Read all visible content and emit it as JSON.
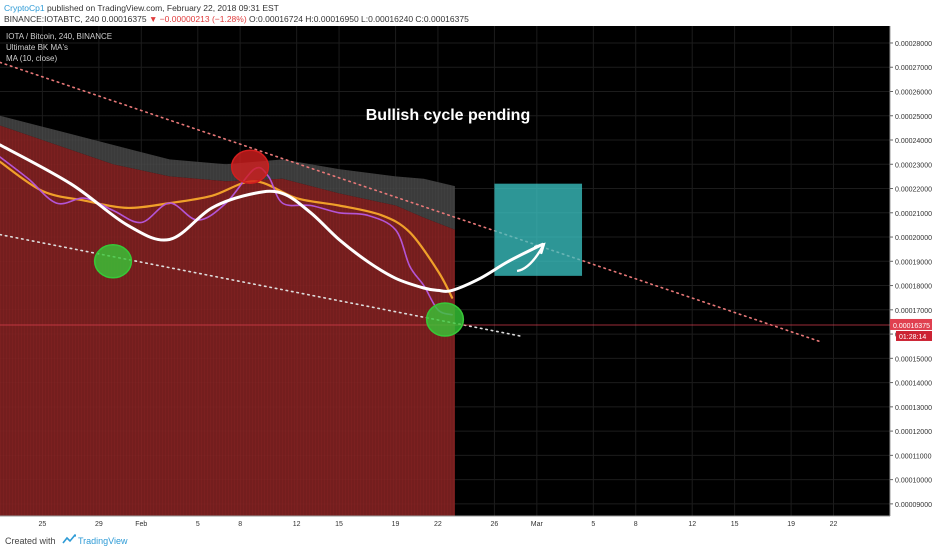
{
  "header": {
    "author": "CryptoCp1",
    "published_text": "published on TradingView.com, February 22, 2018 09:31 EST",
    "symbol_line_prefix": "BINANCE:IOTABTC, 240",
    "last_price": "0.00016375",
    "change": "▼ −0.00000213 (−1.28%)",
    "ohlc": "O:0.00016724 H:0.00016950 L:0.00016240 C:0.00016375"
  },
  "footer": {
    "created_with": "Created with",
    "brand": "TradingView"
  },
  "colors": {
    "background": "#000000",
    "ribbon_red": "#8a2424",
    "ribbon_gray": "#4a4a4a",
    "ma_white": "#ffffff",
    "ma_orange": "#f0a02a",
    "ma_purple": "#b455d6",
    "green_circle": "#37c837",
    "red_circle": "#d21e1e",
    "target_box": "#3cc8c8",
    "price_marker": "#e04050"
  },
  "chart_data": {
    "type": "line",
    "legend": [
      "IOTA / Bitcoin, 240, BINANCE",
      "Ultimate BK MA&#039;s",
      "MA (10, close)"
    ],
    "annotation": "Bullish cycle pending",
    "y_ticks": [
      "0.00028000",
      "0.00027000",
      "0.00026000",
      "0.00025000",
      "0.00024000",
      "0.00023000",
      "0.00022000",
      "0.00021000",
      "0.00020000",
      "0.00019000",
      "0.00018000",
      "0.00017000",
      "0.00016000",
      "0.00015000",
      "0.00014000",
      "0.00013000",
      "0.00012000",
      "0.00011000",
      "0.00010000",
      "0.00009000"
    ],
    "ylim": [
      8.5e-05,
      0.000287
    ],
    "x_ticks": [
      "25",
      "29",
      "Feb",
      "5",
      "8",
      "12",
      "15",
      "19",
      "22",
      "26",
      "Mar",
      "5",
      "8",
      "12",
      "15",
      "19",
      "22"
    ],
    "x_tick_days": [
      0,
      4,
      7,
      11,
      14,
      18,
      21,
      25,
      28,
      32,
      35,
      39,
      42,
      46,
      49,
      53,
      56
    ],
    "xlim": [
      -3,
      60
    ],
    "last_price_label": "0.00016375",
    "countdown_label": "01:28:14",
    "last_price_value": 0.00016375,
    "series": [
      {
        "name": "MA (10, close)",
        "role": "white",
        "points": [
          [
            -3,
            0.000238
          ],
          [
            2,
            0.000222
          ],
          [
            6,
            0.000205
          ],
          [
            9,
            0.000199
          ],
          [
            12,
            0.000212
          ],
          [
            15,
            0.000218
          ],
          [
            17,
            0.000218
          ],
          [
            19,
            0.00021
          ],
          [
            21,
            0.000199
          ],
          [
            23,
            0.00019
          ],
          [
            25,
            0.000183
          ],
          [
            27,
            0.000179
          ],
          [
            28,
            0.000178
          ],
          [
            29,
            0.000178
          ],
          [
            31,
            0.000183
          ],
          [
            33,
            0.00019
          ],
          [
            35.4,
            0.000197
          ]
        ]
      },
      {
        "name": "",
        "role": "orange",
        "points": [
          [
            -3,
            0.000231
          ],
          [
            0,
            0.000219
          ],
          [
            3,
            0.000215
          ],
          [
            6,
            0.000212
          ],
          [
            9,
            0.000214
          ],
          [
            12,
            0.000217
          ],
          [
            15,
            0.000223
          ],
          [
            18,
            0.000216
          ],
          [
            21,
            0.000213
          ],
          [
            24,
            0.000209
          ],
          [
            26,
            0.000202
          ],
          [
            28,
            0.000186
          ],
          [
            29,
            0.000175
          ]
        ]
      },
      {
        "name": "",
        "role": "purple",
        "points": [
          [
            -3,
            0.000233
          ],
          [
            -1,
            0.000224
          ],
          [
            1,
            0.000214
          ],
          [
            3,
            0.000216
          ],
          [
            5,
            0.000211
          ],
          [
            7,
            0.000206
          ],
          [
            9,
            0.000214
          ],
          [
            11,
            0.000207
          ],
          [
            13,
            0.000214
          ],
          [
            15,
            0.000228
          ],
          [
            16,
            0.000225
          ],
          [
            17,
            0.000214
          ],
          [
            19,
            0.000213
          ],
          [
            21,
            0.00021
          ],
          [
            23,
            0.000209
          ],
          [
            25,
            0.000203
          ],
          [
            26,
            0.000188
          ],
          [
            27,
            0.00018
          ],
          [
            28,
            0.00017
          ],
          [
            29,
            0.000168
          ]
        ]
      }
    ],
    "ribbon_upper": [
      [
        -3,
        0.00025
      ],
      [
        1,
        0.000244
      ],
      [
        5,
        0.000238
      ],
      [
        9,
        0.000232
      ],
      [
        13,
        0.00023
      ],
      [
        17,
        0.000232
      ],
      [
        21,
        0.000228
      ],
      [
        25,
        0.000225
      ],
      [
        27,
        0.000224
      ],
      [
        29.2,
        0.000221
      ]
    ],
    "ribbon_mid": [
      [
        -3,
        0.000246
      ],
      [
        1,
        0.000238
      ],
      [
        5,
        0.00023
      ],
      [
        9,
        0.000225
      ],
      [
        13,
        0.000223
      ],
      [
        17,
        0.000224
      ],
      [
        21,
        0.000218
      ],
      [
        25,
        0.000213
      ],
      [
        27,
        0.000208
      ],
      [
        29.2,
        0.000203
      ]
    ],
    "ribbon_end_day": 29.2,
    "trendlines": [
      {
        "style": "upper",
        "from": [
          -3,
          0.000272
        ],
        "to": [
          55,
          0.000157
        ]
      },
      {
        "style": "lower",
        "from": [
          -3,
          0.000201
        ],
        "to": [
          34,
          0.000159
        ]
      }
    ],
    "circles": [
      {
        "color": "green",
        "center": [
          5,
          0.00019
        ],
        "rx_days": 1.3,
        "ry_value": 6.8e-06
      },
      {
        "color": "red",
        "center": [
          14.7,
          0.000229
        ],
        "rx_days": 1.3,
        "ry_value": 6.8e-06
      },
      {
        "color": "green",
        "center": [
          28.5,
          0.000166
        ],
        "rx_days": 1.3,
        "ry_value": 6.8e-06
      }
    ],
    "target_box": {
      "x": [
        32,
        38.2
      ],
      "y": [
        0.000184,
        0.000222
      ]
    },
    "arrow": {
      "from": [
        33.6,
        0.000186
      ],
      "to": [
        35.5,
        0.000197
      ]
    }
  }
}
